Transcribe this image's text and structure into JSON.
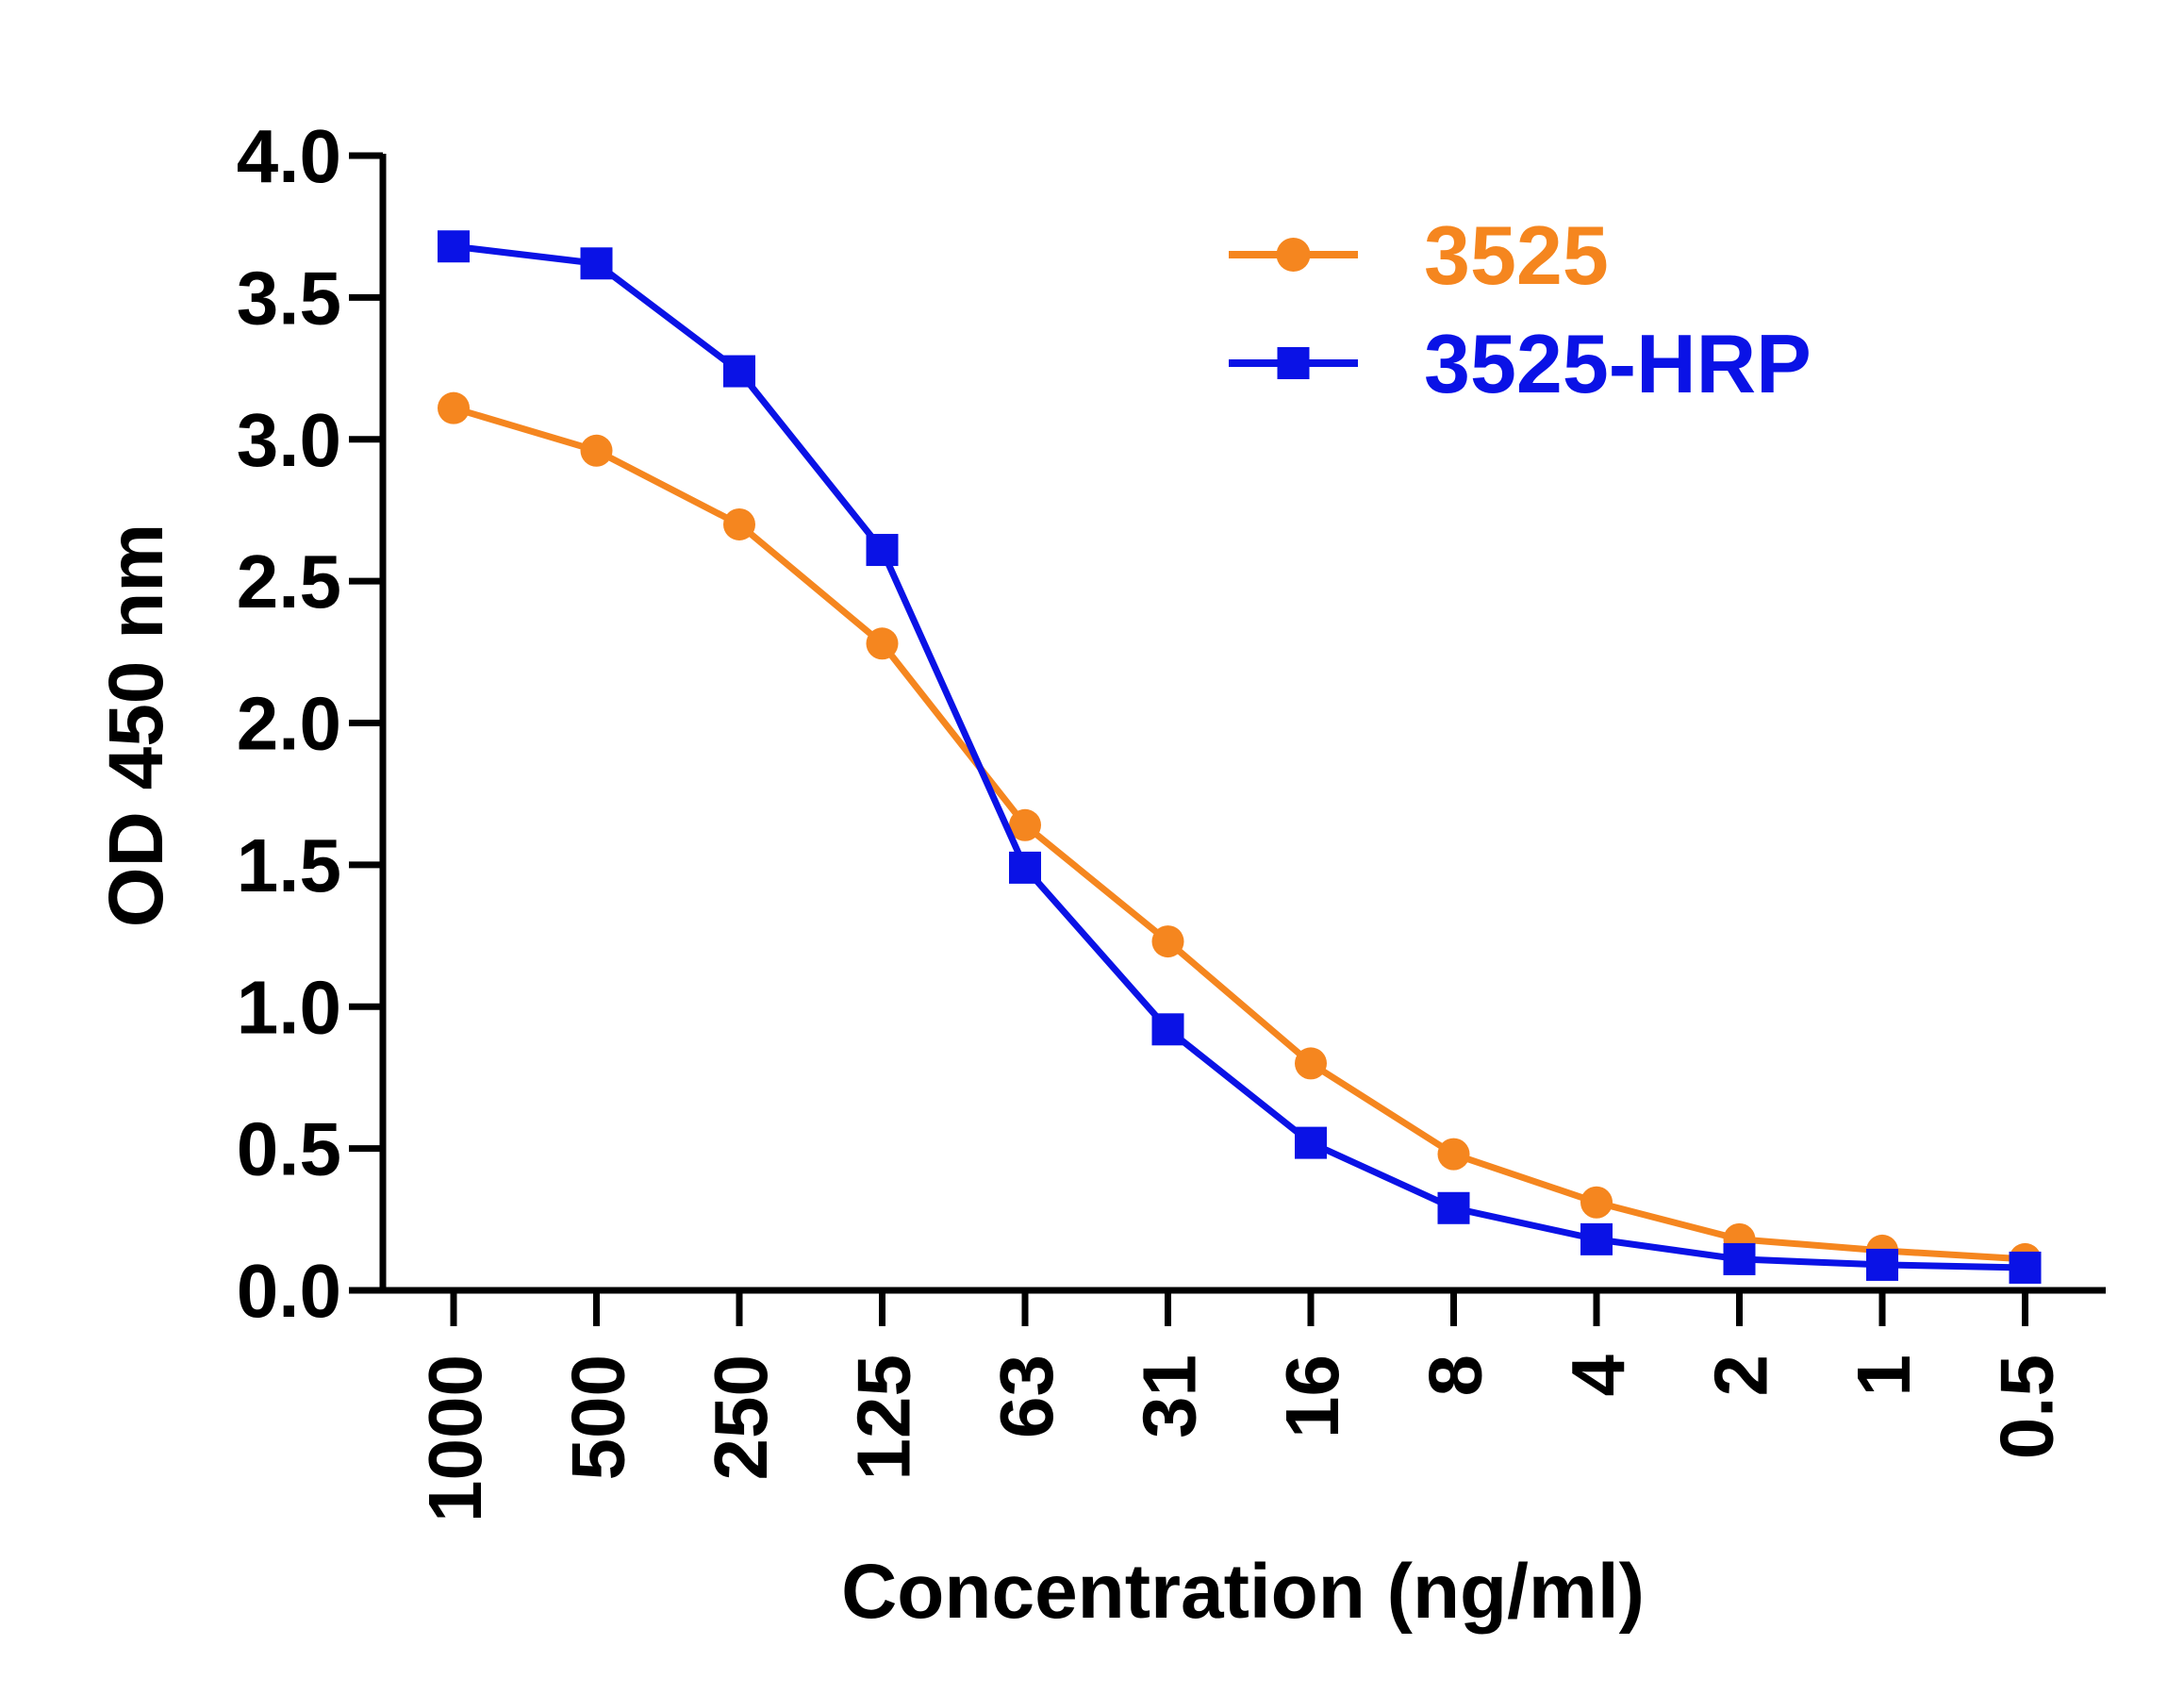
{
  "chart_data": {
    "type": "line",
    "xlabel": "Concentration (ng/ml)",
    "ylabel": "OD 450 nm",
    "categories": [
      "1000",
      "500",
      "250",
      "125",
      "63",
      "31",
      "16",
      "8",
      "4",
      "2",
      "1",
      "0.5"
    ],
    "ylim": [
      0,
      4
    ],
    "yticks": [
      "0.0",
      "0.5",
      "1.0",
      "1.5",
      "2.0",
      "2.5",
      "3.0",
      "3.5",
      "4.0"
    ],
    "grid": false,
    "legend_position": "top-right",
    "series": [
      {
        "name": "3525",
        "color": "#F5861F",
        "marker": "circle",
        "values": [
          3.11,
          2.96,
          2.7,
          2.28,
          1.64,
          1.23,
          0.8,
          0.48,
          0.31,
          0.18,
          0.14,
          0.11
        ]
      },
      {
        "name": "3525-HRP",
        "color": "#0A12E6",
        "marker": "square",
        "values": [
          3.68,
          3.62,
          3.24,
          2.61,
          1.49,
          0.92,
          0.52,
          0.29,
          0.18,
          0.11,
          0.09,
          0.08
        ]
      }
    ]
  }
}
